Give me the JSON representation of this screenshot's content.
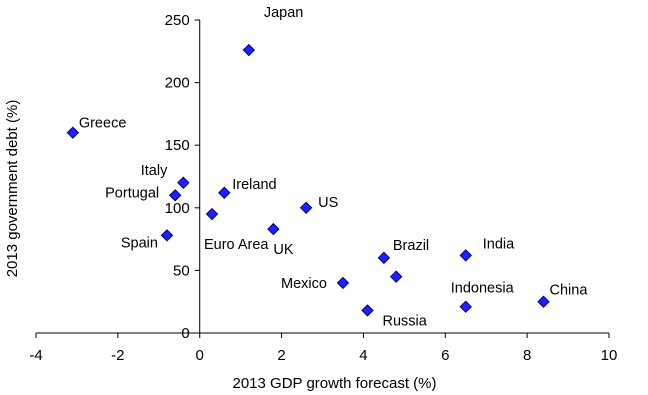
{
  "chart_data": {
    "type": "scatter",
    "xlabel": "2013 GDP growth forecast (%)",
    "ylabel": "2013 government debt (%)",
    "xlim": [
      -4,
      10
    ],
    "ylim": [
      0,
      250
    ],
    "x_ticks": [
      -4,
      -2,
      0,
      2,
      4,
      6,
      8,
      10
    ],
    "y_ticks": [
      0,
      50,
      100,
      150,
      200,
      250
    ],
    "grid": false,
    "marker": "diamond",
    "marker_color": "#1f1fff",
    "marker_edge_color": "#000080",
    "points": [
      {
        "label": "Japan",
        "x": 1.2,
        "y": 226
      },
      {
        "label": "Greece",
        "x": -3.1,
        "y": 160
      },
      {
        "label": "Italy",
        "x": -0.4,
        "y": 120
      },
      {
        "label": "Portugal",
        "x": -0.6,
        "y": 110
      },
      {
        "label": "Ireland",
        "x": 0.6,
        "y": 112
      },
      {
        "label": "US",
        "x": 2.6,
        "y": 100
      },
      {
        "label": "Euro Area",
        "x": 0.3,
        "y": 95
      },
      {
        "label": "UK",
        "x": 1.8,
        "y": 83
      },
      {
        "label": "Spain",
        "x": -0.8,
        "y": 78
      },
      {
        "label": "Brazil",
        "x": 4.5,
        "y": 60
      },
      {
        "label": "India",
        "x": 6.5,
        "y": 62
      },
      {
        "label": "Mexico",
        "x": 3.5,
        "y": 40
      },
      {
        "label": "Russia",
        "x": 4.1,
        "y": 18
      },
      {
        "label": "Indonesia",
        "x": 6.5,
        "y": 21
      },
      {
        "label": "China",
        "x": 8.4,
        "y": 25
      },
      {
        "label": "",
        "x": 4.8,
        "y": 45
      }
    ]
  }
}
